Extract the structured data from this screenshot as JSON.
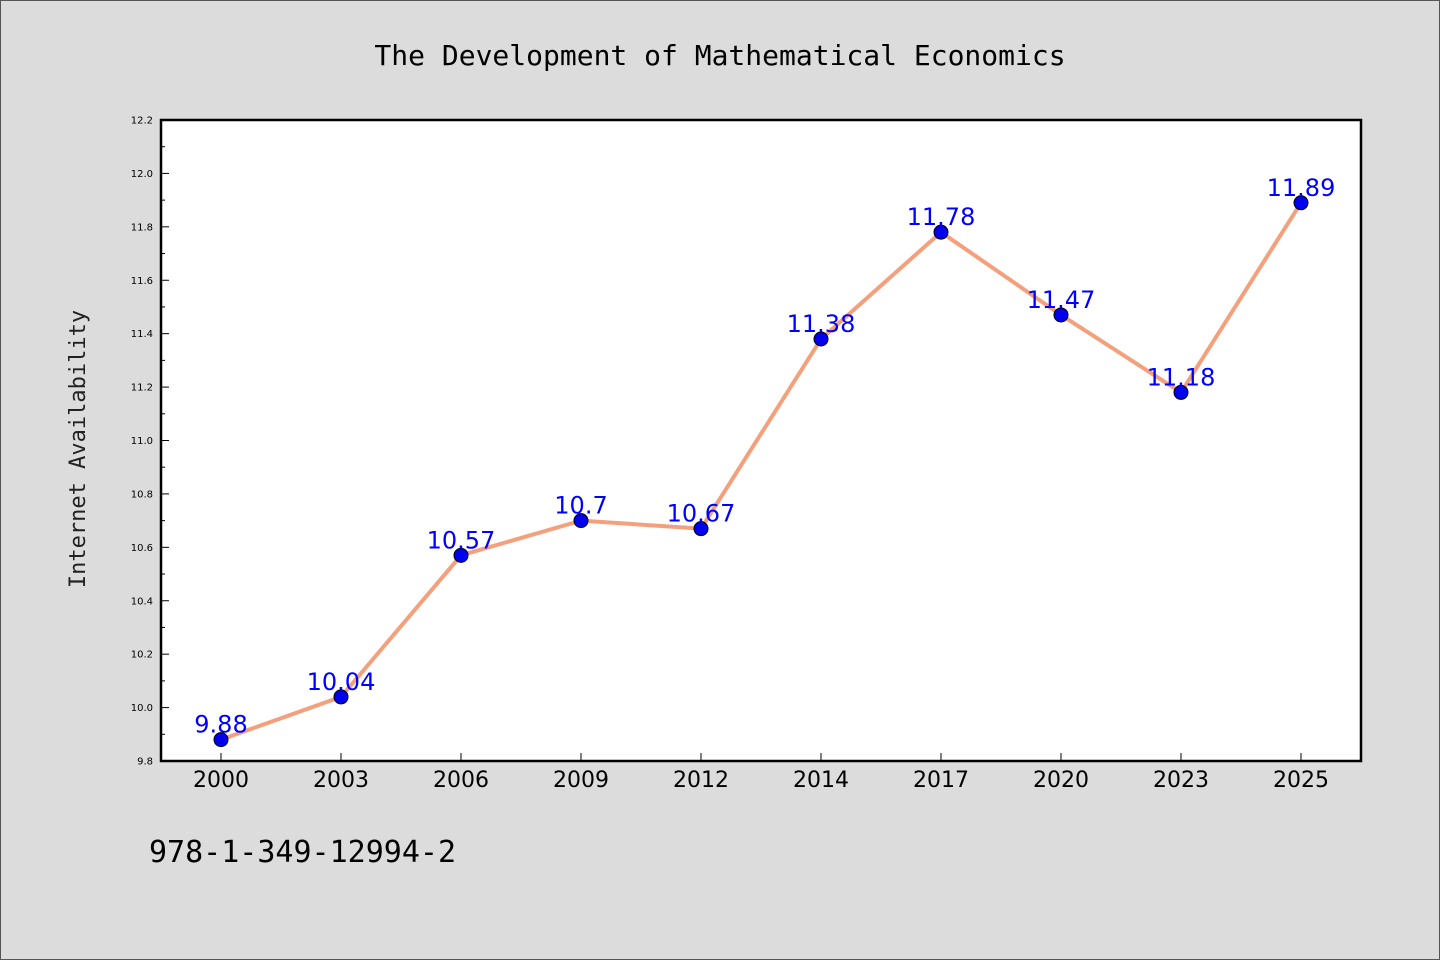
{
  "chart_data": {
    "type": "line",
    "title": "The Development of Mathematical Economics",
    "xlabel": "",
    "ylabel": "Internet Availability",
    "categories": [
      "2000",
      "2003",
      "2006",
      "2009",
      "2012",
      "2014",
      "2017",
      "2020",
      "2023",
      "2025"
    ],
    "values": [
      9.88,
      10.04,
      10.57,
      10.7,
      10.67,
      11.38,
      11.78,
      11.47,
      11.18,
      11.89
    ],
    "data_labels": [
      "9.88",
      "10.04",
      "10.57",
      "10.7",
      "10.67",
      "11.38",
      "11.78",
      "11.47",
      "11.18",
      "11.89"
    ],
    "ylim": [
      9.8,
      12.2
    ],
    "yticks": [
      "9.8",
      "10.0",
      "10.2",
      "10.4",
      "10.6",
      "10.8",
      "11.0",
      "11.2",
      "11.4",
      "11.6",
      "11.8",
      "12.0",
      "12.2"
    ],
    "grid": false,
    "line_color": "#f4a07c",
    "marker_color": "#0000ee",
    "label_color": "#0000ff"
  },
  "footer": {
    "code": "978-1-349-12994-2"
  }
}
